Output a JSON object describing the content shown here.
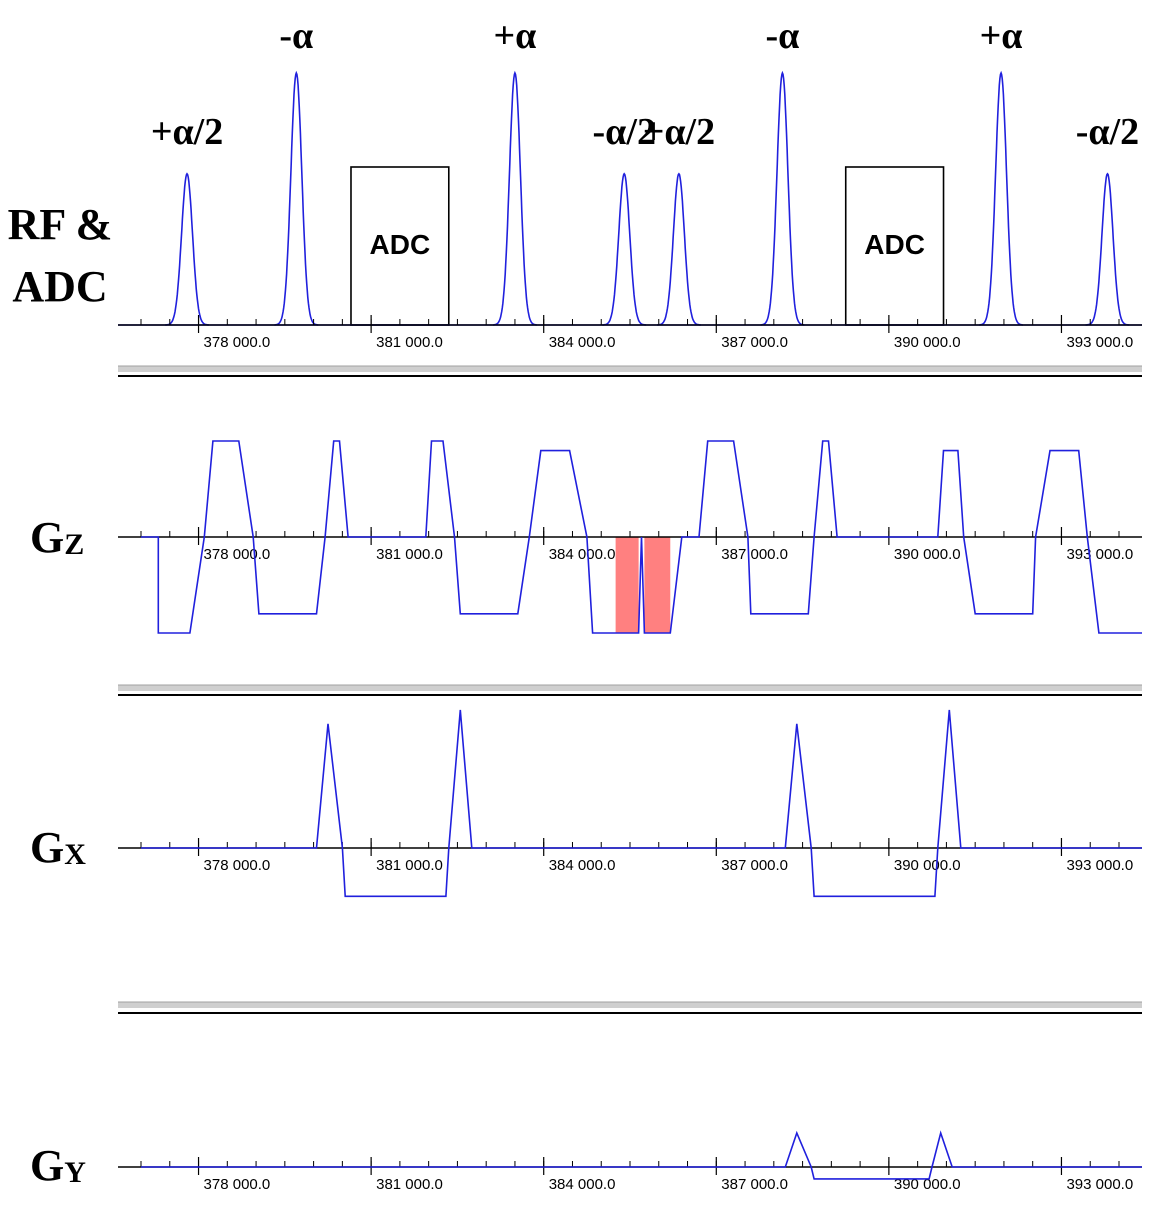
{
  "rf_channel": {
    "label_line1": "RF &",
    "label_line2": "ADC",
    "pulses": [
      {
        "label": "+α/2",
        "t": 377800,
        "amp": 0.6
      },
      {
        "label": "-α",
        "t": 379700,
        "amp": 1.0
      },
      {
        "label": "+α",
        "t": 383500,
        "amp": 1.0
      },
      {
        "label": "-α/2",
        "t": 385400,
        "amp": 0.6
      },
      {
        "label": "+α/2",
        "t": 386350,
        "amp": 0.6
      },
      {
        "label": "-α",
        "t": 388150,
        "amp": 1.0
      },
      {
        "label": "+α",
        "t": 391950,
        "amp": 1.0
      },
      {
        "label": "-α/2",
        "t": 393800,
        "amp": 0.6
      }
    ],
    "adc_windows": [
      {
        "label": "ADC",
        "t_start": 380650,
        "t_end": 382350
      },
      {
        "label": "ADC",
        "t_start": 389250,
        "t_end": 390950
      }
    ]
  },
  "gz_channel": {
    "label_main": "G",
    "label_sub": "Z",
    "highlight_color": "#ff8080",
    "highlight_blocks": [
      {
        "t_start": 385250,
        "t_end": 385650
      },
      {
        "t_start": 385750,
        "t_end": 386200
      }
    ],
    "waveform": [
      [
        377000,
        0
      ],
      [
        377300,
        0
      ],
      [
        377300,
        -1
      ],
      [
        377850,
        -1
      ],
      [
        378100,
        0
      ],
      [
        378250,
        1
      ],
      [
        378700,
        1
      ],
      [
        378950,
        0
      ],
      [
        379050,
        -0.8
      ],
      [
        380050,
        -0.8
      ],
      [
        380200,
        0
      ],
      [
        380350,
        1
      ],
      [
        380450,
        1
      ],
      [
        380600,
        0
      ],
      [
        381950,
        0
      ],
      [
        382050,
        1
      ],
      [
        382250,
        1
      ],
      [
        382450,
        0
      ],
      [
        382550,
        -0.8
      ],
      [
        383550,
        -0.8
      ],
      [
        383750,
        0
      ],
      [
        383950,
        0.9
      ],
      [
        384450,
        0.9
      ],
      [
        384750,
        0
      ],
      [
        384850,
        -1
      ],
      [
        385650,
        -1
      ],
      [
        385700,
        0
      ],
      [
        385750,
        -1
      ],
      [
        386200,
        -1
      ],
      [
        386400,
        0
      ],
      [
        386700,
        0
      ],
      [
        386850,
        1
      ],
      [
        387300,
        1
      ],
      [
        387550,
        0
      ],
      [
        387600,
        -0.8
      ],
      [
        388600,
        -0.8
      ],
      [
        388700,
        0
      ],
      [
        388850,
        1
      ],
      [
        388950,
        1
      ],
      [
        389100,
        0
      ],
      [
        390850,
        0
      ],
      [
        390950,
        0.9
      ],
      [
        391200,
        0.9
      ],
      [
        391300,
        0
      ],
      [
        391500,
        -0.8
      ],
      [
        392500,
        -0.8
      ],
      [
        392550,
        0
      ],
      [
        392800,
        0.9
      ],
      [
        393300,
        0.9
      ],
      [
        393450,
        0
      ],
      [
        393650,
        -1
      ],
      [
        394400,
        -1
      ]
    ]
  },
  "gx_channel": {
    "label_main": "G",
    "label_sub": "X",
    "waveform": [
      [
        377000,
        0
      ],
      [
        380050,
        0
      ],
      [
        380250,
        0.9
      ],
      [
        380500,
        0
      ],
      [
        380550,
        -0.35
      ],
      [
        382300,
        -0.35
      ],
      [
        382350,
        0
      ],
      [
        382550,
        1
      ],
      [
        382750,
        0
      ],
      [
        388200,
        0
      ],
      [
        388400,
        0.9
      ],
      [
        388650,
        0
      ],
      [
        388700,
        -0.35
      ],
      [
        390800,
        -0.35
      ],
      [
        390850,
        0
      ],
      [
        391050,
        1
      ],
      [
        391250,
        0
      ],
      [
        394400,
        0
      ]
    ]
  },
  "gy_channel": {
    "label_main": "G",
    "label_sub": "Y",
    "waveform": [
      [
        377000,
        0
      ],
      [
        388200,
        0
      ],
      [
        388400,
        1
      ],
      [
        388650,
        0
      ],
      [
        388700,
        -0.35
      ],
      [
        390700,
        -0.35
      ],
      [
        390750,
        0
      ],
      [
        390900,
        1
      ],
      [
        391100,
        0
      ],
      [
        394400,
        0
      ]
    ]
  },
  "time_axis": {
    "tick_labels": [
      "378 000.0",
      "381 000.0",
      "384 000.0",
      "387 000.0",
      "390 000.0",
      "393 000.0"
    ],
    "tick_values": [
      378000,
      381000,
      384000,
      387000,
      390000,
      393000
    ],
    "t_min": 376600,
    "t_max": 394400
  },
  "colors": {
    "waveform": "#2020dd",
    "axis": "#000000",
    "separator": "#a0a0a0"
  }
}
